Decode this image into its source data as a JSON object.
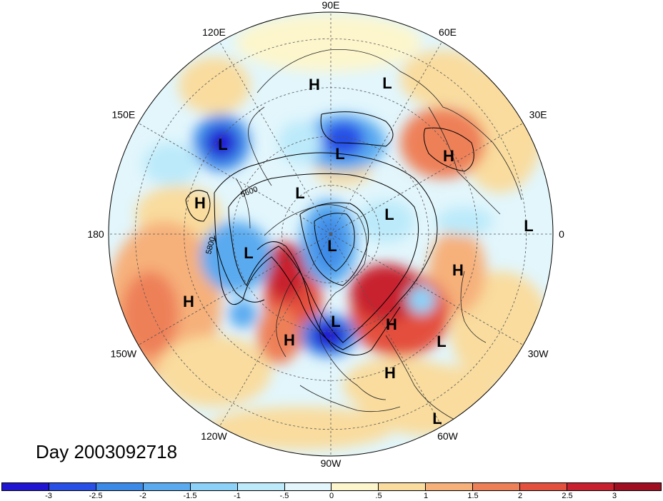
{
  "map": {
    "projection": "north-polar-stereographic",
    "field": "anomaly shading with geopotential height contours",
    "longitude_labels": [
      "90E",
      "60E",
      "30E",
      "0",
      "30W",
      "60W",
      "90W",
      "120W",
      "150W",
      "180",
      "150E",
      "120E"
    ],
    "contour_labels": [
      "5600",
      "5800"
    ],
    "centers": [
      {
        "type": "H",
        "label": "H"
      },
      {
        "type": "L",
        "label": "L"
      },
      {
        "type": "L",
        "label": "L"
      },
      {
        "type": "L",
        "label": "L"
      },
      {
        "type": "H",
        "label": "H"
      },
      {
        "type": "H",
        "label": "H"
      },
      {
        "type": "L",
        "label": "L"
      },
      {
        "type": "L",
        "label": "L"
      },
      {
        "type": "L",
        "label": "L"
      },
      {
        "type": "L",
        "label": "L"
      },
      {
        "type": "L",
        "label": "L"
      },
      {
        "type": "H",
        "label": "H"
      },
      {
        "type": "H",
        "label": "H"
      },
      {
        "type": "L",
        "label": "L"
      },
      {
        "type": "H",
        "label": "H"
      },
      {
        "type": "H",
        "label": "H"
      },
      {
        "type": "L",
        "label": "L"
      },
      {
        "type": "H",
        "label": "H"
      },
      {
        "type": "L",
        "label": "L"
      }
    ]
  },
  "title": {
    "day_label": "Day 2003092718"
  },
  "colorbar": {
    "colors": [
      "#2016d2",
      "#2850e6",
      "#3c8ae8",
      "#5aaaf0",
      "#8cd2f8",
      "#bceafa",
      "#e2f6fc",
      "#fdf6cc",
      "#f9dc9e",
      "#f6b07a",
      "#ee8058",
      "#e4503e",
      "#c8202e",
      "#a00e22"
    ],
    "ticks": [
      "-3",
      "-2.5",
      "-2",
      "-1.5",
      "-1",
      "-.5",
      "0",
      ".5",
      "1",
      "1.5",
      "2",
      "2.5",
      "3"
    ]
  }
}
